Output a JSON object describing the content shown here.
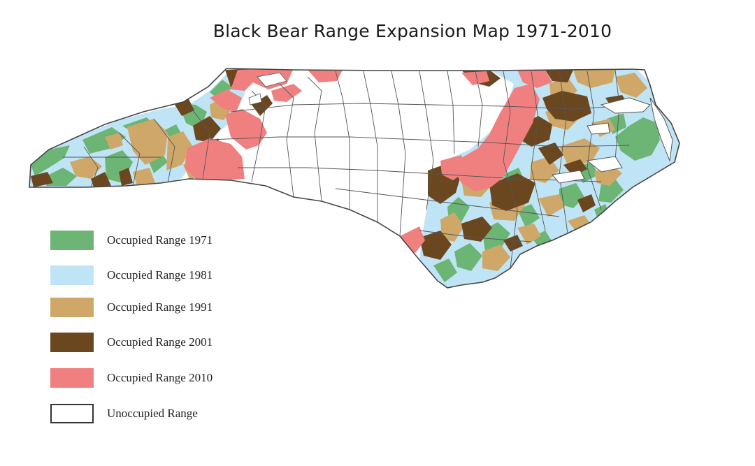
{
  "title": "Black Bear Range Expansion Map 1971-2010",
  "colors": {
    "range_1971": "#6cb575",
    "range_1981": "#bfe4f5",
    "range_1991": "#cfa869",
    "range_2001": "#6b4720",
    "range_2010": "#f08080",
    "unoccupied": "#ffffff",
    "border": "#444444"
  },
  "legend": [
    {
      "label": "Occupied Range 1971",
      "color": "#6cb575"
    },
    {
      "label": "Occupied Range 1981",
      "color": "#bfe4f5"
    },
    {
      "label": "Occupied Range 1991",
      "color": "#cfa869"
    },
    {
      "label": "Occupied Range 2001",
      "color": "#6b4720"
    },
    {
      "label": "Occupied Range 2010",
      "color": "#f08080"
    },
    {
      "label": "Unoccupied Range",
      "color": "#ffffff"
    }
  ]
}
